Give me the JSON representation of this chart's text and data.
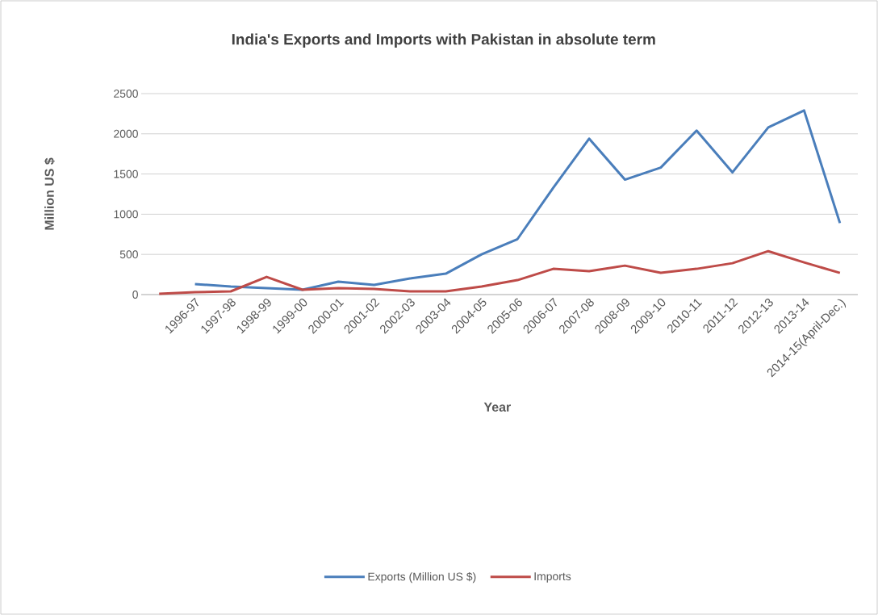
{
  "chart_data": {
    "type": "line",
    "title": "India's Exports and Imports with Pakistan in absolute term",
    "xlabel": "Year",
    "ylabel": "Million US $",
    "categories": [
      null,
      "1996-97",
      "1997-98",
      "1998-99",
      "1999-00",
      "2000-01",
      "2001-02",
      "2002-03",
      "2003-04",
      "2004-05",
      "2005-06",
      "2006-07",
      "2007-08",
      "2008-09",
      "2009-10",
      "2010-11",
      "2011-12",
      "2012-13",
      "2013-14",
      "2014-15(April-Dec.)"
    ],
    "series": [
      {
        "name": "Exports (Million US $)",
        "color": "#4a7ebb",
        "values": [
          null,
          130,
          100,
          80,
          60,
          160,
          120,
          200,
          260,
          500,
          690,
          1330,
          1940,
          1430,
          1580,
          2040,
          1520,
          2080,
          2290,
          890
        ]
      },
      {
        "name": "Imports",
        "color": "#be4b48",
        "values": [
          10,
          30,
          40,
          220,
          60,
          80,
          70,
          40,
          40,
          100,
          180,
          320,
          290,
          360,
          270,
          320,
          390,
          540,
          400,
          270
        ]
      }
    ],
    "ylim": [
      0,
      2500
    ],
    "yticks": [
      0,
      500,
      1000,
      1500,
      2000,
      2500
    ],
    "grid": "y",
    "legend": "bottom"
  }
}
